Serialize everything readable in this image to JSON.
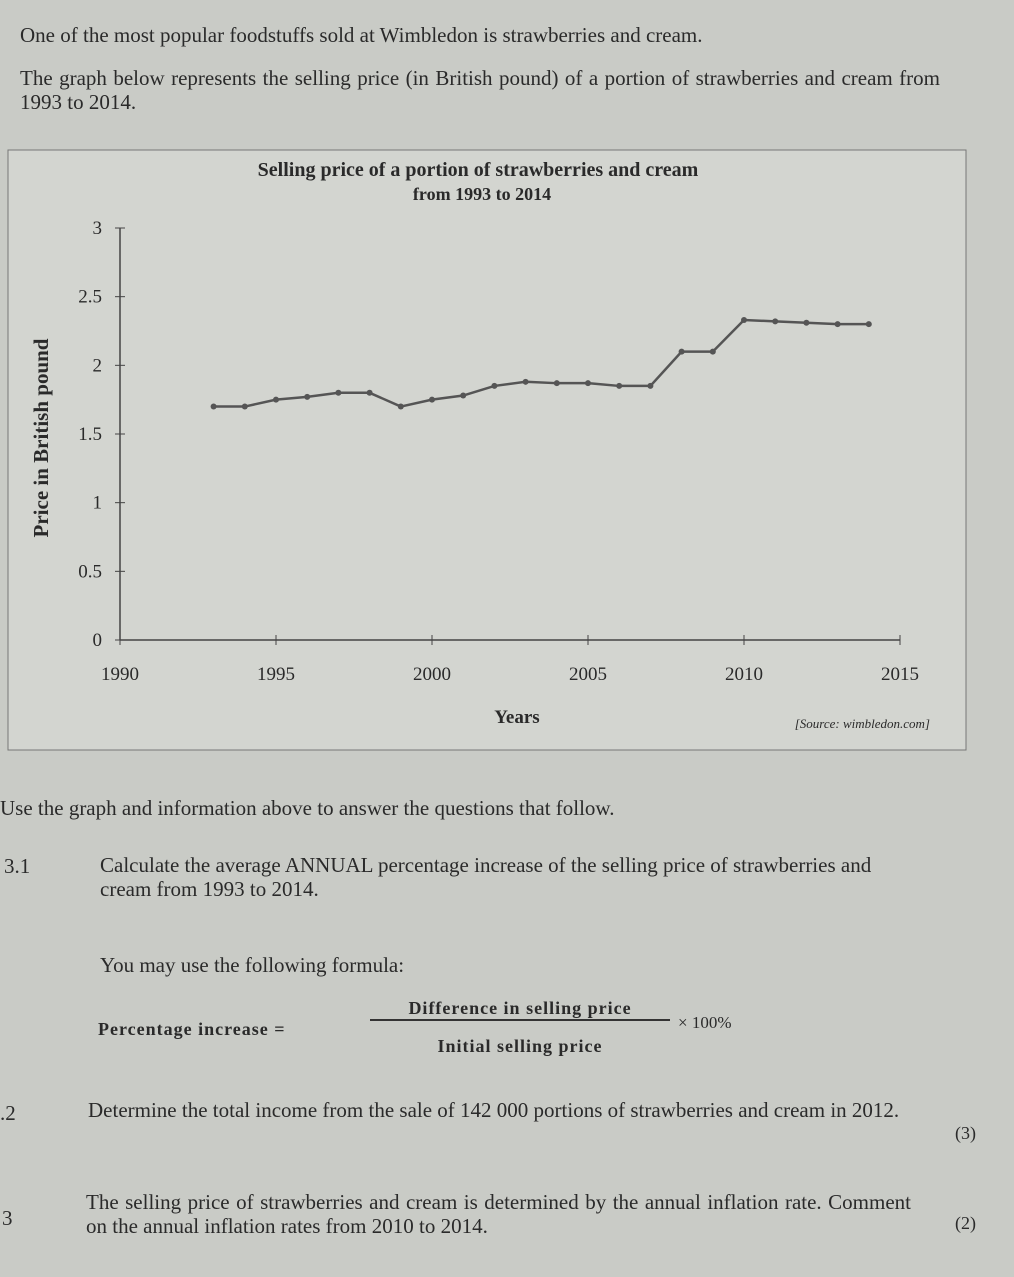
{
  "intro": {
    "line1": "One of the most popular foodstuffs sold at Wimbledon is strawberries and cream.",
    "line2": "The graph below represents the selling price (in British pound) of a portion of strawberries and cream from 1993 to 2014."
  },
  "chart_data": {
    "type": "line",
    "title": "Selling price of a portion of strawberries and cream",
    "subtitle": "from 1993 to 2014",
    "x_label": "Years",
    "y_label": "Price in British pound",
    "source": "[Source: wimbledon.com]",
    "x": [
      1993,
      1994,
      1995,
      1996,
      1997,
      1998,
      1999,
      2000,
      2001,
      2002,
      2003,
      2004,
      2005,
      2006,
      2007,
      2008,
      2009,
      2010,
      2011,
      2012,
      2013,
      2014
    ],
    "values": [
      1.7,
      1.7,
      1.75,
      1.77,
      1.8,
      1.8,
      1.7,
      1.75,
      1.78,
      1.85,
      1.88,
      1.87,
      1.87,
      1.85,
      1.85,
      2.1,
      2.1,
      2.33,
      2.32,
      2.31,
      2.3,
      2.3
    ],
    "color": "#555555",
    "xlim": [
      1990,
      2015
    ],
    "xticks": [
      1990,
      1995,
      2000,
      2005,
      2010,
      2015
    ],
    "ylim": [
      0,
      3
    ],
    "yticks": [
      0,
      0.5,
      1,
      1.5,
      2,
      2.5,
      3
    ]
  },
  "instruction": "Use the graph and information above to answer the questions that follow.",
  "questions": [
    {
      "number": "3.1",
      "text": "Calculate the average ANNUAL percentage increase of the selling price of strawberries and cream from 1993 to 2014.",
      "hint": "You may use the following formula:",
      "formula": {
        "lhs": "Percentage increase =",
        "numerator": "Difference in selling price",
        "denominator": "Initial selling price",
        "factor": "× 100%"
      }
    },
    {
      "number": ".2",
      "text": "Determine the total income from the sale of 142 000 portions of strawberries and cream in 2012.",
      "marks": "(3)"
    },
    {
      "number": "3",
      "text": "The selling price of strawberries and cream is determined by the annual inflation rate. Comment on the annual inflation rates from 2010 to 2014.",
      "marks": "(2)"
    }
  ]
}
